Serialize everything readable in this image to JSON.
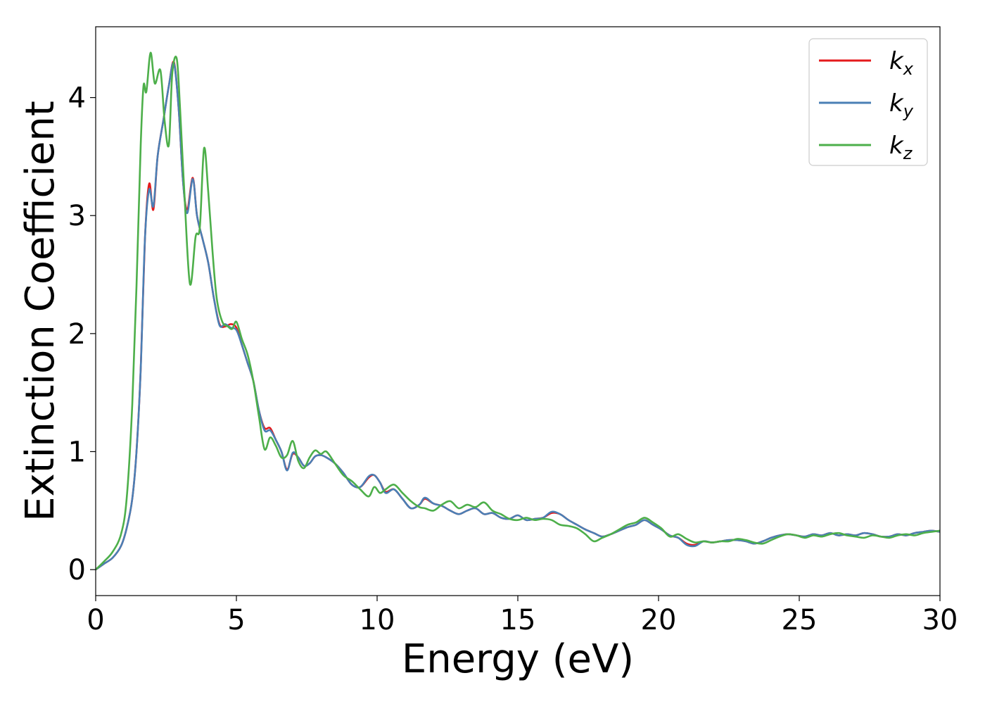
{
  "chart_data": {
    "type": "line",
    "title": "",
    "xlabel": "Energy (eV)",
    "ylabel": "Extinction Coefficient",
    "xlim": [
      0,
      30
    ],
    "ylim": [
      -0.22,
      4.6
    ],
    "xticks": [
      0,
      5,
      10,
      15,
      20,
      25,
      30
    ],
    "xtick_labels": [
      "0",
      "5",
      "10",
      "15",
      "20",
      "25",
      "30"
    ],
    "yticks": [
      0,
      1,
      2,
      3,
      4
    ],
    "ytick_labels": [
      "0",
      "1",
      "2",
      "3",
      "4"
    ],
    "grid": false,
    "legend": {
      "position": "top-right"
    },
    "series": [
      {
        "name": "k_x",
        "legend_base": "k",
        "legend_sub": "x",
        "color": "#e41a1c",
        "x": [
          0,
          0.3,
          0.6,
          0.9,
          1.1,
          1.3,
          1.45,
          1.6,
          1.75,
          1.9,
          2.05,
          2.2,
          2.4,
          2.6,
          2.78,
          2.95,
          3.1,
          3.25,
          3.45,
          3.6,
          3.8,
          4.0,
          4.2,
          4.4,
          4.6,
          4.8,
          5.0,
          5.2,
          5.4,
          5.6,
          5.8,
          6.0,
          6.2,
          6.4,
          6.6,
          6.8,
          7.0,
          7.2,
          7.4,
          7.6,
          7.8,
          8.0,
          8.2,
          8.5,
          8.8,
          9.1,
          9.4,
          9.7,
          9.9,
          10.1,
          10.3,
          10.6,
          10.9,
          11.2,
          11.5,
          11.7,
          12.0,
          12.3,
          12.6,
          12.9,
          13.2,
          13.5,
          13.8,
          14.1,
          14.4,
          14.7,
          15.0,
          15.3,
          15.6,
          15.9,
          16.2,
          16.5,
          16.8,
          17.1,
          17.4,
          17.7,
          18.0,
          18.3,
          18.6,
          18.9,
          19.2,
          19.5,
          19.8,
          20.1,
          20.4,
          20.7,
          21.0,
          21.3,
          21.6,
          21.9,
          22.2,
          22.5,
          22.8,
          23.1,
          23.4,
          23.7,
          24.0,
          24.3,
          24.6,
          24.9,
          25.2,
          25.5,
          25.8,
          26.1,
          26.4,
          26.7,
          27.0,
          27.3,
          27.6,
          27.9,
          28.2,
          28.5,
          28.8,
          29.1,
          29.4,
          29.7,
          30.0
        ],
        "y": [
          0,
          0.05,
          0.1,
          0.2,
          0.35,
          0.6,
          1.0,
          1.7,
          2.8,
          3.27,
          3.05,
          3.5,
          3.8,
          4.1,
          4.3,
          3.9,
          3.3,
          3.05,
          3.32,
          3.0,
          2.8,
          2.6,
          2.3,
          2.08,
          2.06,
          2.08,
          2.05,
          1.9,
          1.75,
          1.6,
          1.35,
          1.2,
          1.2,
          1.1,
          1.0,
          0.85,
          0.98,
          0.95,
          0.88,
          0.9,
          0.96,
          0.97,
          0.95,
          0.9,
          0.82,
          0.72,
          0.7,
          0.78,
          0.8,
          0.74,
          0.66,
          0.68,
          0.6,
          0.52,
          0.55,
          0.6,
          0.56,
          0.54,
          0.5,
          0.47,
          0.5,
          0.52,
          0.47,
          0.48,
          0.44,
          0.43,
          0.46,
          0.42,
          0.43,
          0.44,
          0.48,
          0.47,
          0.42,
          0.38,
          0.34,
          0.31,
          0.28,
          0.3,
          0.33,
          0.36,
          0.38,
          0.42,
          0.38,
          0.34,
          0.29,
          0.27,
          0.22,
          0.21,
          0.24,
          0.23,
          0.24,
          0.25,
          0.25,
          0.24,
          0.22,
          0.24,
          0.27,
          0.29,
          0.3,
          0.29,
          0.28,
          0.3,
          0.29,
          0.31,
          0.29,
          0.3,
          0.29,
          0.31,
          0.3,
          0.28,
          0.28,
          0.3,
          0.29,
          0.31,
          0.32,
          0.33,
          0.32
        ]
      },
      {
        "name": "k_y",
        "legend_base": "k",
        "legend_sub": "y",
        "color": "#4a7fb5",
        "x": [
          0,
          0.3,
          0.6,
          0.9,
          1.1,
          1.3,
          1.45,
          1.6,
          1.75,
          1.9,
          2.05,
          2.2,
          2.4,
          2.6,
          2.78,
          2.95,
          3.1,
          3.25,
          3.45,
          3.6,
          3.8,
          4.0,
          4.2,
          4.4,
          4.6,
          4.8,
          5.0,
          5.2,
          5.4,
          5.6,
          5.8,
          6.0,
          6.2,
          6.4,
          6.6,
          6.8,
          7.0,
          7.2,
          7.4,
          7.6,
          7.8,
          8.0,
          8.2,
          8.5,
          8.8,
          9.1,
          9.4,
          9.7,
          9.9,
          10.1,
          10.3,
          10.6,
          10.9,
          11.2,
          11.5,
          11.7,
          12.0,
          12.3,
          12.6,
          12.9,
          13.2,
          13.5,
          13.8,
          14.1,
          14.4,
          14.7,
          15.0,
          15.3,
          15.6,
          15.9,
          16.2,
          16.5,
          16.8,
          17.1,
          17.4,
          17.7,
          18.0,
          18.3,
          18.6,
          18.9,
          19.2,
          19.5,
          19.8,
          20.1,
          20.4,
          20.7,
          21.0,
          21.3,
          21.6,
          21.9,
          22.2,
          22.5,
          22.8,
          23.1,
          23.4,
          23.7,
          24.0,
          24.3,
          24.6,
          24.9,
          25.2,
          25.5,
          25.8,
          26.1,
          26.4,
          26.7,
          27.0,
          27.3,
          27.6,
          27.9,
          28.2,
          28.5,
          28.8,
          29.1,
          29.4,
          29.7,
          30.0
        ],
        "y": [
          0,
          0.05,
          0.1,
          0.2,
          0.35,
          0.6,
          1.0,
          1.7,
          2.8,
          3.22,
          3.08,
          3.5,
          3.8,
          4.1,
          4.29,
          3.9,
          3.3,
          3.02,
          3.31,
          3.0,
          2.8,
          2.6,
          2.3,
          2.07,
          2.08,
          2.05,
          2.03,
          1.9,
          1.75,
          1.6,
          1.35,
          1.18,
          1.18,
          1.1,
          1.0,
          0.84,
          0.99,
          0.95,
          0.88,
          0.9,
          0.96,
          0.97,
          0.95,
          0.9,
          0.82,
          0.72,
          0.7,
          0.79,
          0.8,
          0.74,
          0.65,
          0.68,
          0.6,
          0.52,
          0.55,
          0.61,
          0.56,
          0.54,
          0.5,
          0.47,
          0.5,
          0.52,
          0.47,
          0.48,
          0.44,
          0.43,
          0.46,
          0.42,
          0.43,
          0.44,
          0.49,
          0.47,
          0.42,
          0.38,
          0.34,
          0.31,
          0.28,
          0.3,
          0.33,
          0.36,
          0.38,
          0.42,
          0.38,
          0.34,
          0.29,
          0.27,
          0.21,
          0.2,
          0.24,
          0.23,
          0.24,
          0.25,
          0.25,
          0.24,
          0.22,
          0.24,
          0.27,
          0.29,
          0.3,
          0.29,
          0.28,
          0.3,
          0.29,
          0.31,
          0.29,
          0.3,
          0.29,
          0.31,
          0.3,
          0.28,
          0.28,
          0.3,
          0.29,
          0.31,
          0.32,
          0.33,
          0.32
        ]
      },
      {
        "name": "k_z",
        "legend_base": "k",
        "legend_sub": "z",
        "color": "#4daf4a",
        "x": [
          0,
          0.3,
          0.6,
          0.9,
          1.1,
          1.3,
          1.45,
          1.6,
          1.7,
          1.8,
          1.95,
          2.1,
          2.3,
          2.45,
          2.6,
          2.72,
          2.88,
          3.0,
          3.15,
          3.35,
          3.55,
          3.7,
          3.85,
          4.0,
          4.15,
          4.3,
          4.5,
          4.7,
          4.85,
          5.0,
          5.2,
          5.4,
          5.6,
          5.8,
          6.0,
          6.2,
          6.4,
          6.6,
          6.8,
          7.0,
          7.2,
          7.4,
          7.6,
          7.8,
          8.0,
          8.2,
          8.5,
          8.8,
          9.1,
          9.4,
          9.7,
          9.9,
          10.1,
          10.3,
          10.6,
          10.9,
          11.2,
          11.5,
          11.7,
          12.0,
          12.3,
          12.6,
          12.9,
          13.2,
          13.5,
          13.8,
          14.1,
          14.4,
          14.7,
          15.0,
          15.3,
          15.6,
          15.9,
          16.2,
          16.5,
          16.8,
          17.1,
          17.4,
          17.7,
          18.0,
          18.3,
          18.6,
          18.9,
          19.2,
          19.5,
          19.8,
          20.1,
          20.4,
          20.7,
          21.0,
          21.3,
          21.6,
          21.9,
          22.2,
          22.5,
          22.8,
          23.1,
          23.4,
          23.7,
          24.0,
          24.3,
          24.6,
          24.9,
          25.2,
          25.5,
          25.8,
          26.1,
          26.4,
          26.7,
          27.0,
          27.3,
          27.6,
          27.9,
          28.2,
          28.5,
          28.8,
          29.1,
          29.4,
          29.7,
          30.0
        ],
        "y": [
          0,
          0.07,
          0.15,
          0.3,
          0.6,
          1.4,
          2.4,
          3.6,
          4.1,
          4.05,
          4.38,
          4.12,
          4.23,
          3.8,
          3.6,
          4.2,
          4.33,
          3.9,
          3.2,
          2.42,
          2.82,
          2.9,
          3.57,
          3.2,
          2.7,
          2.3,
          2.1,
          2.06,
          2.04,
          2.1,
          1.95,
          1.82,
          1.6,
          1.3,
          1.02,
          1.12,
          1.05,
          0.95,
          0.97,
          1.09,
          0.92,
          0.86,
          0.95,
          1.01,
          0.98,
          1.0,
          0.9,
          0.8,
          0.75,
          0.68,
          0.62,
          0.7,
          0.65,
          0.68,
          0.72,
          0.65,
          0.58,
          0.53,
          0.52,
          0.5,
          0.55,
          0.58,
          0.52,
          0.55,
          0.53,
          0.57,
          0.5,
          0.47,
          0.43,
          0.42,
          0.44,
          0.42,
          0.43,
          0.42,
          0.38,
          0.37,
          0.35,
          0.3,
          0.24,
          0.27,
          0.3,
          0.34,
          0.38,
          0.4,
          0.44,
          0.4,
          0.35,
          0.28,
          0.3,
          0.26,
          0.23,
          0.24,
          0.23,
          0.24,
          0.24,
          0.26,
          0.25,
          0.23,
          0.22,
          0.25,
          0.28,
          0.3,
          0.29,
          0.27,
          0.29,
          0.28,
          0.3,
          0.31,
          0.29,
          0.28,
          0.27,
          0.29,
          0.28,
          0.27,
          0.29,
          0.3,
          0.29,
          0.31,
          0.32,
          0.33
        ]
      }
    ]
  }
}
